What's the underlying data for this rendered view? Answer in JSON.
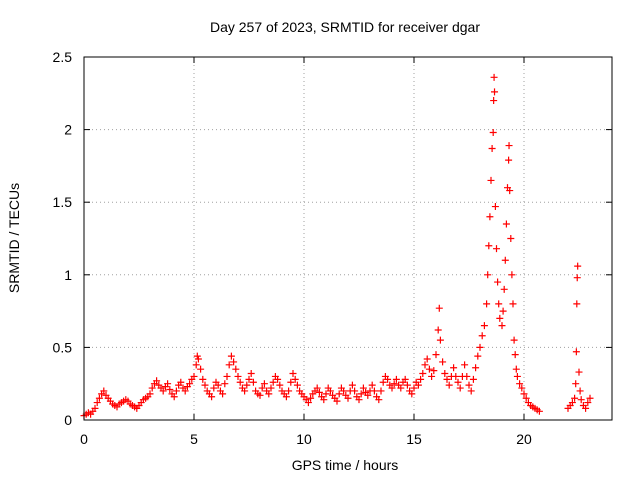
{
  "chart_data": {
    "type": "scatter",
    "title": "Day 257 of 2023, SRMTID for receiver dgar",
    "xlabel": "GPS time / hours",
    "ylabel": "SRMTID / TECUs",
    "xlim": [
      0,
      24
    ],
    "ylim": [
      0,
      2.5
    ],
    "xticks": [
      0,
      5,
      10,
      15,
      20
    ],
    "xtick_labels": [
      "0",
      "5",
      "10",
      "15",
      "20"
    ],
    "yticks": [
      0,
      0.5,
      1,
      1.5,
      2,
      2.5
    ],
    "ytick_labels": [
      "0",
      "0.5",
      "1",
      "1.5",
      "2",
      "2.5"
    ],
    "grid": true,
    "marker": "+",
    "series": [
      {
        "name": "SRMTID",
        "color": "#ff0000",
        "points": [
          [
            0.0,
            0.03
          ],
          [
            0.1,
            0.04
          ],
          [
            0.2,
            0.05
          ],
          [
            0.3,
            0.04
          ],
          [
            0.4,
            0.06
          ],
          [
            0.5,
            0.08
          ],
          [
            0.6,
            0.12
          ],
          [
            0.7,
            0.15
          ],
          [
            0.8,
            0.18
          ],
          [
            0.9,
            0.2
          ],
          [
            1.0,
            0.17
          ],
          [
            1.1,
            0.15
          ],
          [
            1.2,
            0.13
          ],
          [
            1.3,
            0.11
          ],
          [
            1.4,
            0.1
          ],
          [
            1.5,
            0.09
          ],
          [
            1.6,
            0.11
          ],
          [
            1.7,
            0.12
          ],
          [
            1.8,
            0.13
          ],
          [
            1.9,
            0.14
          ],
          [
            2.0,
            0.13
          ],
          [
            2.1,
            0.11
          ],
          [
            2.2,
            0.1
          ],
          [
            2.3,
            0.09
          ],
          [
            2.4,
            0.08
          ],
          [
            2.5,
            0.1
          ],
          [
            2.6,
            0.12
          ],
          [
            2.7,
            0.14
          ],
          [
            2.8,
            0.15
          ],
          [
            2.9,
            0.16
          ],
          [
            3.0,
            0.18
          ],
          [
            3.1,
            0.22
          ],
          [
            3.2,
            0.25
          ],
          [
            3.3,
            0.27
          ],
          [
            3.4,
            0.24
          ],
          [
            3.5,
            0.22
          ],
          [
            3.6,
            0.2
          ],
          [
            3.7,
            0.23
          ],
          [
            3.8,
            0.25
          ],
          [
            3.9,
            0.21
          ],
          [
            4.0,
            0.18
          ],
          [
            4.1,
            0.16
          ],
          [
            4.2,
            0.2
          ],
          [
            4.3,
            0.24
          ],
          [
            4.4,
            0.26
          ],
          [
            4.5,
            0.22
          ],
          [
            4.6,
            0.2
          ],
          [
            4.7,
            0.23
          ],
          [
            4.8,
            0.25
          ],
          [
            4.9,
            0.28
          ],
          [
            5.0,
            0.3
          ],
          [
            5.1,
            0.38
          ],
          [
            5.15,
            0.44
          ],
          [
            5.2,
            0.42
          ],
          [
            5.3,
            0.35
          ],
          [
            5.4,
            0.28
          ],
          [
            5.5,
            0.24
          ],
          [
            5.6,
            0.2
          ],
          [
            5.7,
            0.18
          ],
          [
            5.8,
            0.16
          ],
          [
            5.9,
            0.22
          ],
          [
            6.0,
            0.26
          ],
          [
            6.1,
            0.24
          ],
          [
            6.2,
            0.2
          ],
          [
            6.3,
            0.18
          ],
          [
            6.4,
            0.25
          ],
          [
            6.5,
            0.3
          ],
          [
            6.6,
            0.38
          ],
          [
            6.7,
            0.44
          ],
          [
            6.8,
            0.4
          ],
          [
            6.9,
            0.35
          ],
          [
            7.0,
            0.3
          ],
          [
            7.1,
            0.26
          ],
          [
            7.2,
            0.22
          ],
          [
            7.3,
            0.2
          ],
          [
            7.4,
            0.24
          ],
          [
            7.5,
            0.28
          ],
          [
            7.6,
            0.32
          ],
          [
            7.7,
            0.26
          ],
          [
            7.8,
            0.2
          ],
          [
            7.9,
            0.18
          ],
          [
            8.0,
            0.17
          ],
          [
            8.1,
            0.22
          ],
          [
            8.2,
            0.25
          ],
          [
            8.3,
            0.2
          ],
          [
            8.4,
            0.18
          ],
          [
            8.5,
            0.22
          ],
          [
            8.6,
            0.26
          ],
          [
            8.7,
            0.3
          ],
          [
            8.8,
            0.28
          ],
          [
            8.9,
            0.24
          ],
          [
            9.0,
            0.2
          ],
          [
            9.1,
            0.18
          ],
          [
            9.2,
            0.16
          ],
          [
            9.3,
            0.2
          ],
          [
            9.4,
            0.26
          ],
          [
            9.5,
            0.32
          ],
          [
            9.6,
            0.28
          ],
          [
            9.7,
            0.24
          ],
          [
            9.8,
            0.2
          ],
          [
            9.9,
            0.18
          ],
          [
            10.0,
            0.16
          ],
          [
            10.1,
            0.14
          ],
          [
            10.2,
            0.12
          ],
          [
            10.3,
            0.15
          ],
          [
            10.4,
            0.18
          ],
          [
            10.5,
            0.2
          ],
          [
            10.6,
            0.22
          ],
          [
            10.7,
            0.19
          ],
          [
            10.8,
            0.16
          ],
          [
            10.9,
            0.14
          ],
          [
            11.0,
            0.18
          ],
          [
            11.1,
            0.22
          ],
          [
            11.2,
            0.2
          ],
          [
            11.3,
            0.17
          ],
          [
            11.4,
            0.15
          ],
          [
            11.5,
            0.13
          ],
          [
            11.6,
            0.18
          ],
          [
            11.7,
            0.22
          ],
          [
            11.8,
            0.2
          ],
          [
            11.9,
            0.17
          ],
          [
            12.0,
            0.15
          ],
          [
            12.1,
            0.2
          ],
          [
            12.2,
            0.24
          ],
          [
            12.3,
            0.2
          ],
          [
            12.4,
            0.16
          ],
          [
            12.5,
            0.14
          ],
          [
            12.6,
            0.18
          ],
          [
            12.7,
            0.22
          ],
          [
            12.8,
            0.19
          ],
          [
            12.9,
            0.17
          ],
          [
            13.0,
            0.2
          ],
          [
            13.1,
            0.24
          ],
          [
            13.2,
            0.2
          ],
          [
            13.3,
            0.16
          ],
          [
            13.4,
            0.14
          ],
          [
            13.5,
            0.2
          ],
          [
            13.6,
            0.26
          ],
          [
            13.7,
            0.3
          ],
          [
            13.8,
            0.28
          ],
          [
            13.9,
            0.24
          ],
          [
            14.0,
            0.22
          ],
          [
            14.1,
            0.25
          ],
          [
            14.2,
            0.28
          ],
          [
            14.3,
            0.24
          ],
          [
            14.4,
            0.22
          ],
          [
            14.5,
            0.26
          ],
          [
            14.6,
            0.28
          ],
          [
            14.7,
            0.24
          ],
          [
            14.8,
            0.2
          ],
          [
            14.9,
            0.18
          ],
          [
            15.0,
            0.22
          ],
          [
            15.1,
            0.26
          ],
          [
            15.2,
            0.24
          ],
          [
            15.3,
            0.28
          ],
          [
            15.4,
            0.32
          ],
          [
            15.5,
            0.38
          ],
          [
            15.6,
            0.42
          ],
          [
            15.7,
            0.35
          ],
          [
            15.8,
            0.3
          ],
          [
            15.9,
            0.34
          ],
          [
            16.0,
            0.45
          ],
          [
            16.1,
            0.62
          ],
          [
            16.15,
            0.77
          ],
          [
            16.2,
            0.55
          ],
          [
            16.3,
            0.4
          ],
          [
            16.4,
            0.32
          ],
          [
            16.5,
            0.28
          ],
          [
            16.6,
            0.24
          ],
          [
            16.7,
            0.3
          ],
          [
            16.8,
            0.36
          ],
          [
            16.9,
            0.3
          ],
          [
            17.0,
            0.26
          ],
          [
            17.1,
            0.22
          ],
          [
            17.2,
            0.3
          ],
          [
            17.3,
            0.38
          ],
          [
            17.4,
            0.3
          ],
          [
            17.5,
            0.24
          ],
          [
            17.6,
            0.2
          ],
          [
            17.7,
            0.28
          ],
          [
            17.8,
            0.36
          ],
          [
            17.9,
            0.44
          ],
          [
            18.0,
            0.5
          ],
          [
            18.1,
            0.58
          ],
          [
            18.2,
            0.65
          ],
          [
            18.3,
            0.8
          ],
          [
            18.35,
            1.0
          ],
          [
            18.4,
            1.2
          ],
          [
            18.45,
            1.4
          ],
          [
            18.5,
            1.65
          ],
          [
            18.55,
            1.87
          ],
          [
            18.6,
            1.98
          ],
          [
            18.62,
            2.2
          ],
          [
            18.64,
            2.36
          ],
          [
            18.66,
            2.26
          ],
          [
            18.7,
            1.47
          ],
          [
            18.75,
            1.18
          ],
          [
            18.8,
            0.95
          ],
          [
            18.85,
            0.8
          ],
          [
            18.9,
            0.7
          ],
          [
            19.0,
            0.65
          ],
          [
            19.05,
            0.75
          ],
          [
            19.1,
            0.9
          ],
          [
            19.15,
            1.1
          ],
          [
            19.2,
            1.35
          ],
          [
            19.25,
            1.6
          ],
          [
            19.3,
            1.79
          ],
          [
            19.32,
            1.89
          ],
          [
            19.35,
            1.58
          ],
          [
            19.4,
            1.25
          ],
          [
            19.45,
            1.0
          ],
          [
            19.5,
            0.8
          ],
          [
            19.55,
            0.55
          ],
          [
            19.6,
            0.45
          ],
          [
            19.65,
            0.35
          ],
          [
            19.7,
            0.3
          ],
          [
            19.8,
            0.25
          ],
          [
            19.9,
            0.22
          ],
          [
            20.0,
            0.18
          ],
          [
            20.1,
            0.15
          ],
          [
            20.2,
            0.12
          ],
          [
            20.3,
            0.1
          ],
          [
            20.4,
            0.09
          ],
          [
            20.5,
            0.08
          ],
          [
            20.6,
            0.07
          ],
          [
            20.7,
            0.06
          ],
          [
            22.0,
            0.08
          ],
          [
            22.1,
            0.1
          ],
          [
            22.2,
            0.12
          ],
          [
            22.3,
            0.15
          ],
          [
            22.35,
            0.25
          ],
          [
            22.38,
            0.47
          ],
          [
            22.4,
            0.8
          ],
          [
            22.42,
            0.98
          ],
          [
            22.44,
            1.06
          ],
          [
            22.5,
            0.33
          ],
          [
            22.55,
            0.2
          ],
          [
            22.6,
            0.14
          ],
          [
            22.7,
            0.1
          ],
          [
            22.8,
            0.08
          ],
          [
            22.9,
            0.12
          ],
          [
            23.0,
            0.15
          ]
        ]
      }
    ]
  }
}
